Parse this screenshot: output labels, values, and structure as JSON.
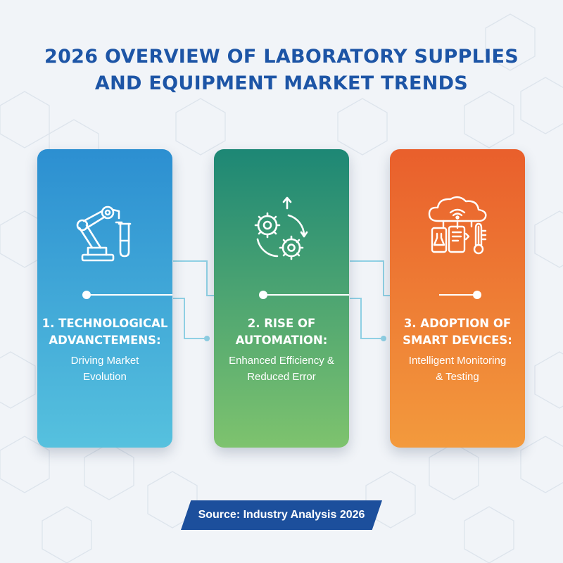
{
  "title": {
    "line1": "2026 OVERVIEW OF LABORATORY SUPPLIES",
    "line2": "AND EQUIPMENT MARKET TRENDS"
  },
  "cards": [
    {
      "heading_line1": "1. TECHNOLOGICAL",
      "heading_line2": "ADVANCTEMENS:",
      "sub_line1": "Driving Market",
      "sub_line2": "Evolution",
      "icon": "robotic-arm-test-tube-icon",
      "color_top": "#2c8fd1",
      "color_bottom": "#56c1de"
    },
    {
      "heading_line1": "2. RISE OF",
      "heading_line2": "AUTOMATION:",
      "sub_line1": "Enhanced Efficiency &",
      "sub_line2": "Reduced Error",
      "icon": "gears-cycle-icon",
      "color_top": "#1d8775",
      "color_bottom": "#7ec36e"
    },
    {
      "heading_line1": "3. ADOPTION OF",
      "heading_line2": "SMART DEVICES:",
      "sub_line1": "Intelligent Monitoring",
      "sub_line2": "& Testing",
      "icon": "cloud-smart-devices-icon",
      "color_top": "#e95f2c",
      "color_bottom": "#f39a3d"
    }
  ],
  "source": "Source: Industry Analysis 2026"
}
